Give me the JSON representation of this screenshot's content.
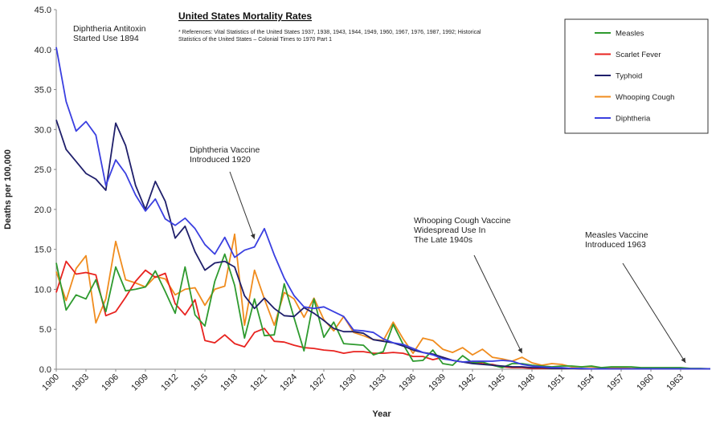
{
  "chart_data": {
    "type": "line",
    "title": "United States Mortality Rates",
    "subtitle": [
      "* References: Vital Statistics of the United States 1937, 1938, 1943, 1944, 1949, 1960, 1967, 1976, 1987, 1992; Historical",
      "Statistics of the United States – Colonial Times to 1970 Part 1"
    ],
    "xlabel": "Year",
    "ylabel": "Deaths per 100,000",
    "xlim": [
      1900,
      1966
    ],
    "ylim": [
      0,
      45
    ],
    "yticks": [
      "0.0",
      "5.0",
      "10.0",
      "15.0",
      "20.0",
      "25.0",
      "30.0",
      "35.0",
      "40.0",
      "45.0"
    ],
    "xticks": [
      "1900",
      "1903",
      "1906",
      "1909",
      "1912",
      "1915",
      "1918",
      "1921",
      "1924",
      "1927",
      "1930",
      "1933",
      "1936",
      "1939",
      "1942",
      "1945",
      "1948",
      "1951",
      "1954",
      "1957",
      "1960",
      "1963"
    ],
    "legend_position": "top-right",
    "x": [
      1900,
      1901,
      1902,
      1903,
      1904,
      1905,
      1906,
      1907,
      1908,
      1909,
      1910,
      1911,
      1912,
      1913,
      1914,
      1915,
      1916,
      1917,
      1918,
      1919,
      1920,
      1921,
      1922,
      1923,
      1924,
      1925,
      1926,
      1927,
      1928,
      1929,
      1930,
      1931,
      1932,
      1933,
      1934,
      1935,
      1936,
      1937,
      1938,
      1939,
      1940,
      1941,
      1942,
      1943,
      1944,
      1945,
      1946,
      1947,
      1948,
      1949,
      1950,
      1951,
      1952,
      1953,
      1954,
      1955,
      1956,
      1957,
      1958,
      1959,
      1960,
      1961,
      1962,
      1963,
      1964,
      1965,
      1966
    ],
    "series": [
      {
        "name": "Measles",
        "color": "#2e9a2e",
        "values": [
          13.3,
          7.4,
          9.3,
          8.8,
          11.2,
          7.2,
          12.8,
          9.8,
          10.0,
          10.3,
          12.3,
          9.7,
          7.0,
          12.8,
          6.8,
          5.4,
          11.0,
          14.4,
          10.5,
          3.9,
          8.8,
          4.2,
          4.3,
          10.7,
          6.4,
          2.3,
          8.8,
          4.0,
          5.9,
          3.2,
          3.1,
          3.0,
          1.8,
          2.2,
          5.6,
          3.1,
          1.0,
          1.1,
          2.4,
          0.7,
          0.5,
          1.7,
          0.8,
          0.9,
          0.5,
          0.2,
          0.7,
          0.7,
          0.5,
          0.4,
          0.3,
          0.4,
          0.4,
          0.3,
          0.4,
          0.2,
          0.3,
          0.3,
          0.3,
          0.2,
          0.2,
          0.2,
          0.2,
          0.2,
          0.1,
          0.1,
          0.05
        ]
      },
      {
        "name": "Scarlet Fever",
        "color": "#e8231f",
        "values": [
          9.6,
          13.5,
          11.9,
          12.1,
          11.8,
          6.7,
          7.2,
          9.0,
          11.0,
          12.4,
          11.5,
          12.0,
          8.2,
          6.8,
          8.7,
          3.6,
          3.3,
          4.3,
          3.2,
          2.8,
          4.6,
          5.1,
          3.5,
          3.4,
          3.0,
          2.7,
          2.6,
          2.4,
          2.3,
          2.0,
          2.2,
          2.2,
          2.0,
          2.0,
          2.1,
          2.0,
          1.6,
          1.6,
          1.2,
          1.5,
          1.1,
          0.9,
          0.9,
          0.7,
          0.6,
          0.3,
          0.2,
          0.2,
          0.1,
          0.1,
          0.1,
          0.1,
          0.1,
          0.05,
          0.05,
          0.05,
          0.05,
          0.05,
          0.05,
          0.05,
          0.05,
          0.05,
          0.05,
          0.05,
          0.05,
          0.05,
          0.05
        ]
      },
      {
        "name": "Typhoid",
        "color": "#1f1f6b",
        "values": [
          31.2,
          27.5,
          26.0,
          24.5,
          23.8,
          22.4,
          30.8,
          28.0,
          23.0,
          20.0,
          23.5,
          21.0,
          16.4,
          17.9,
          14.7,
          12.4,
          13.3,
          13.5,
          12.8,
          9.2,
          7.6,
          8.9,
          7.6,
          6.7,
          6.6,
          7.7,
          7.0,
          6.1,
          5.1,
          4.7,
          4.7,
          4.5,
          3.7,
          3.5,
          3.3,
          2.9,
          2.4,
          2.1,
          1.9,
          1.5,
          1.1,
          0.9,
          0.7,
          0.6,
          0.5,
          0.4,
          0.3,
          0.3,
          0.2,
          0.2,
          0.1,
          0.1,
          0.1,
          0.05,
          0.05,
          0.05,
          0.05,
          0.05,
          0.05,
          0.05,
          0.05,
          0.05,
          0.05,
          0.05,
          0.05,
          0.05,
          0.05
        ]
      },
      {
        "name": "Whooping Cough",
        "color": "#f08c1e",
        "values": [
          12.2,
          8.6,
          12.6,
          14.2,
          5.8,
          8.8,
          16.0,
          11.2,
          10.8,
          10.3,
          11.6,
          11.3,
          9.3,
          10.0,
          10.2,
          8.0,
          10.0,
          10.4,
          16.9,
          5.5,
          12.4,
          8.8,
          5.5,
          9.6,
          8.8,
          6.5,
          8.9,
          6.2,
          4.8,
          6.6,
          4.6,
          4.2,
          3.7,
          3.6,
          5.9,
          3.8,
          2.0,
          3.9,
          3.6,
          2.5,
          2.1,
          2.7,
          1.8,
          2.5,
          1.5,
          1.3,
          1.0,
          1.5,
          0.8,
          0.5,
          0.7,
          0.6,
          0.3,
          0.3,
          0.3,
          0.2,
          0.2,
          0.2,
          0.1,
          0.1,
          0.05,
          0.05,
          0.05,
          0.05,
          0.05,
          0.05,
          0.05
        ]
      },
      {
        "name": "Diphtheria",
        "color": "#3a3fe0",
        "values": [
          40.3,
          33.5,
          29.8,
          31.0,
          29.3,
          23.0,
          26.2,
          24.5,
          21.8,
          19.8,
          21.3,
          18.8,
          18.0,
          18.9,
          17.6,
          15.6,
          14.4,
          16.5,
          14.0,
          14.9,
          15.3,
          17.6,
          14.3,
          11.4,
          9.2,
          7.8,
          7.6,
          7.8,
          7.2,
          6.6,
          4.9,
          4.8,
          4.6,
          3.8,
          3.3,
          3.1,
          2.6,
          2.1,
          1.8,
          1.3,
          1.1,
          0.9,
          1.0,
          1.0,
          1.0,
          1.1,
          1.0,
          0.6,
          0.4,
          0.3,
          0.2,
          0.2,
          0.1,
          0.1,
          0.05,
          0.05,
          0.05,
          0.05,
          0.05,
          0.05,
          0.05,
          0.05,
          0.05,
          0.05,
          0.05,
          0.05,
          0.05
        ]
      }
    ],
    "annotations": [
      {
        "lines": [
          "Diphtheria Antitoxin",
          "Started Use 1894"
        ]
      },
      {
        "lines": [
          "Diphtheria Vaccine",
          "Introduced 1920"
        ],
        "arrow_to": [
          1920,
          16.3
        ]
      },
      {
        "lines": [
          "Whooping Cough Vaccine",
          "Widespread Use In",
          "The Late 1940s"
        ],
        "arrow_to": [
          1947,
          2.0
        ]
      },
      {
        "lines": [
          "Measles Vaccine",
          "Introduced 1963"
        ],
        "arrow_to": [
          1963.5,
          0.8
        ]
      }
    ]
  }
}
